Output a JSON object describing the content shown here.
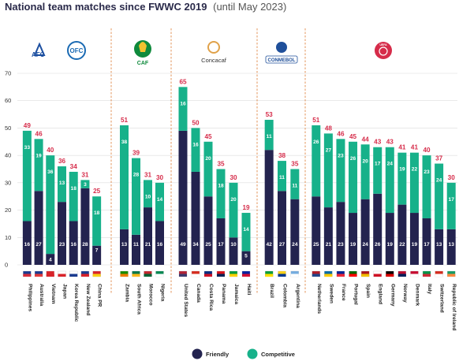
{
  "chart_data": {
    "type": "bar",
    "stacked": true,
    "title": "National team matches since FWWC 2019",
    "subtitle": "(until May 2023)",
    "ylim": [
      0,
      70
    ],
    "yticks": [
      0,
      10,
      20,
      30,
      40,
      50,
      60,
      70
    ],
    "grid": true,
    "legend_position": "bottom",
    "series": [
      {
        "name": "Friendly",
        "color": "#23234f"
      },
      {
        "name": "Competitive",
        "color": "#17b18a"
      }
    ],
    "colors": {
      "total_label": "#d62c4a",
      "divider": "#e08a4a"
    },
    "groups": [
      {
        "confederations": [
          "AFC",
          "OFC"
        ],
        "countries": [
          {
            "name": "Philippines",
            "friendly": 16,
            "competitive": 33,
            "total": 49
          },
          {
            "name": "Australia",
            "friendly": 27,
            "competitive": 19,
            "total": 46
          },
          {
            "name": "Vietnam",
            "friendly": 4,
            "competitive": 36,
            "total": 40
          },
          {
            "name": "Japan",
            "friendly": 23,
            "competitive": 13,
            "total": 36
          },
          {
            "name": "Korea Republic",
            "friendly": 16,
            "competitive": 18,
            "total": 34
          },
          {
            "name": "New Zealand",
            "friendly": 28,
            "competitive": 3,
            "total": 31
          },
          {
            "name": "China PR",
            "friendly": 7,
            "competitive": 18,
            "total": 25
          }
        ]
      },
      {
        "confederations": [
          "CAF"
        ],
        "countries": [
          {
            "name": "Zambia",
            "friendly": 13,
            "competitive": 38,
            "total": 51
          },
          {
            "name": "South Africa",
            "friendly": 11,
            "competitive": 28,
            "total": 39
          },
          {
            "name": "Morocco",
            "friendly": 21,
            "competitive": 10,
            "total": 31
          },
          {
            "name": "Nigeria",
            "friendly": 16,
            "competitive": 14,
            "total": 30
          }
        ]
      },
      {
        "confederations": [
          "Concacaf"
        ],
        "countries": [
          {
            "name": "United States",
            "friendly": 49,
            "competitive": 16,
            "total": 65
          },
          {
            "name": "Canada",
            "friendly": 34,
            "competitive": 16,
            "total": 50
          },
          {
            "name": "Costa Rica",
            "friendly": 25,
            "competitive": 20,
            "total": 45
          },
          {
            "name": "Panama",
            "friendly": 17,
            "competitive": 18,
            "total": 35
          },
          {
            "name": "Jamaica",
            "friendly": 10,
            "competitive": 20,
            "total": 30
          },
          {
            "name": "Haiti",
            "friendly": 5,
            "competitive": 14,
            "total": 19
          }
        ]
      },
      {
        "confederations": [
          "CONMEBOL"
        ],
        "countries": [
          {
            "name": "Brazil",
            "friendly": 42,
            "competitive": 11,
            "total": 53
          },
          {
            "name": "Colombia",
            "friendly": 27,
            "competitive": 11,
            "total": 38
          },
          {
            "name": "Argentina",
            "friendly": 24,
            "competitive": 11,
            "total": 35
          }
        ]
      },
      {
        "confederations": [
          "UEFA"
        ],
        "countries": [
          {
            "name": "Netherlands",
            "friendly": 25,
            "competitive": 26,
            "total": 51
          },
          {
            "name": "Sweden",
            "friendly": 21,
            "competitive": 27,
            "total": 48
          },
          {
            "name": "France",
            "friendly": 23,
            "competitive": 23,
            "total": 46
          },
          {
            "name": "Portugal",
            "friendly": 19,
            "competitive": 26,
            "total": 45
          },
          {
            "name": "Spain",
            "friendly": 24,
            "competitive": 20,
            "total": 44
          },
          {
            "name": "England",
            "friendly": 26,
            "competitive": 17,
            "total": 43
          },
          {
            "name": "Germany",
            "friendly": 19,
            "competitive": 24,
            "total": 43
          },
          {
            "name": "Norway",
            "friendly": 22,
            "competitive": 19,
            "total": 41
          },
          {
            "name": "Denmark",
            "friendly": 19,
            "competitive": 22,
            "total": 41
          },
          {
            "name": "Italy",
            "friendly": 17,
            "competitive": 23,
            "total": 40
          },
          {
            "name": "Switzerland",
            "friendly": 13,
            "competitive": 24,
            "total": 37
          },
          {
            "name": "Republic of Ireland",
            "friendly": 13,
            "competitive": 17,
            "total": 30
          }
        ]
      }
    ]
  }
}
